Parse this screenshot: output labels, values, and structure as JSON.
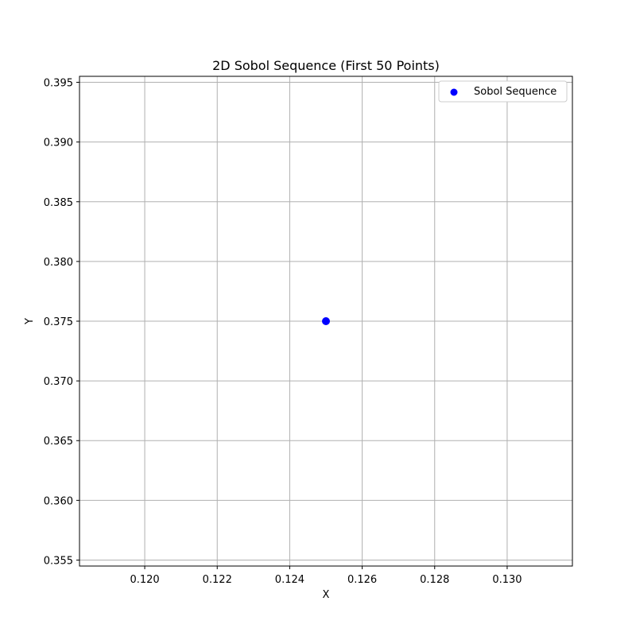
{
  "chart_data": {
    "type": "scatter",
    "title": "2D Sobol Sequence (First 50 Points)",
    "xlabel": "X",
    "ylabel": "Y",
    "xlim": [
      0.1182,
      0.1318
    ],
    "ylim": [
      0.3545,
      0.3955
    ],
    "xticks": [
      0.12,
      0.122,
      0.124,
      0.126,
      0.128,
      0.13
    ],
    "xtick_labels": [
      "0.120",
      "0.122",
      "0.124",
      "0.126",
      "0.128",
      "0.130"
    ],
    "yticks": [
      0.355,
      0.36,
      0.365,
      0.37,
      0.375,
      0.38,
      0.385,
      0.39,
      0.395
    ],
    "ytick_labels": [
      "0.355",
      "0.360",
      "0.365",
      "0.370",
      "0.375",
      "0.380",
      "0.385",
      "0.390",
      "0.395"
    ],
    "grid": true,
    "legend_position": "top-right",
    "series": [
      {
        "name": "Sobol Sequence",
        "color": "#0000ff",
        "x": [
          0.125
        ],
        "y": [
          0.375
        ]
      }
    ]
  }
}
